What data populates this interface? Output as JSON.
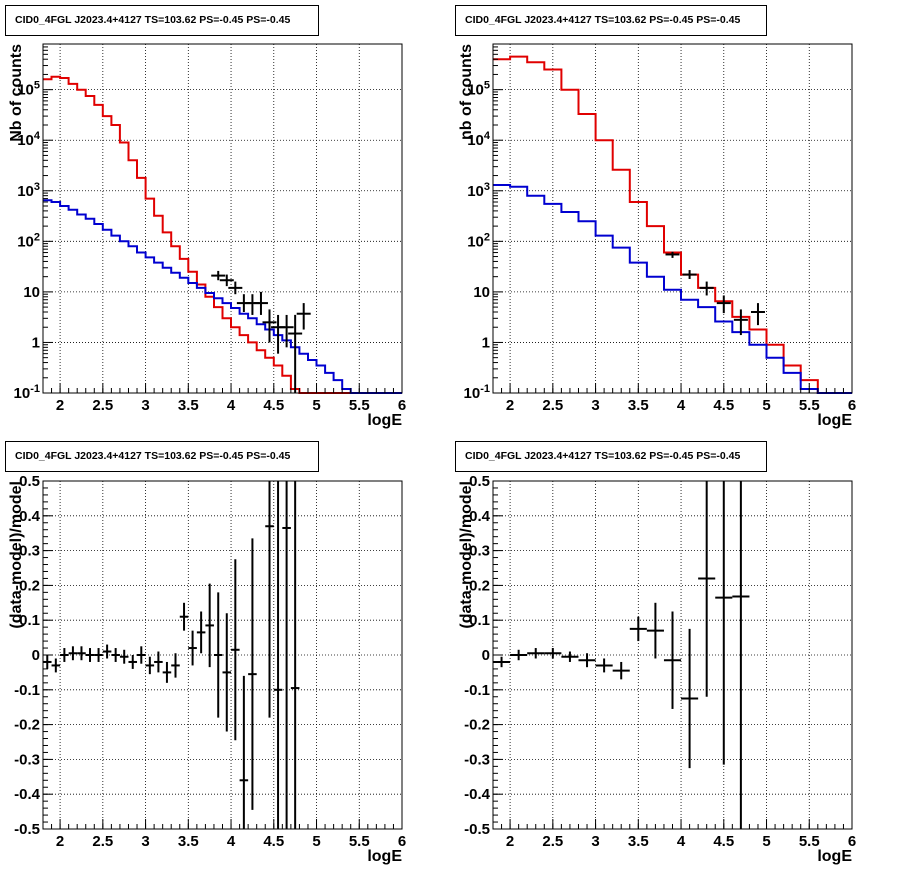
{
  "panels": [
    {
      "id": "p1",
      "title": "CID0_4FGL J2023.4+4127 TS=103.62 PS=-0.45 PS=-0.45",
      "chart_data": {
        "type": "line",
        "xlabel": "logE",
        "ylabel": "Nb of counts",
        "log_y": true,
        "xlim": [
          1.8,
          6.0
        ],
        "ylim": [
          0.1,
          800000
        ],
        "grid": true,
        "x_ticks": [
          2,
          2.5,
          3,
          3.5,
          4,
          4.5,
          5,
          5.5,
          6
        ],
        "x_tick_labels": [
          "2",
          "2.5",
          "3",
          "3.5",
          "4",
          "4.5",
          "5",
          "5.5",
          "6"
        ],
        "y_ticks": [
          0.1,
          1,
          10,
          100,
          1000,
          10000,
          100000
        ],
        "y_tick_labels": [
          "10^-1",
          "1",
          "10",
          "10^2",
          "10^3",
          "10^4",
          "10^5"
        ],
        "bin_edges": [
          1.8,
          1.9,
          2.0,
          2.1,
          2.2,
          2.3,
          2.4,
          2.5,
          2.6,
          2.7,
          2.8,
          2.9,
          3.0,
          3.1,
          3.2,
          3.3,
          3.4,
          3.5,
          3.6,
          3.7,
          3.8,
          3.9,
          4.0,
          4.1,
          4.2,
          4.3,
          4.4,
          4.5,
          4.6,
          4.7,
          4.8,
          4.9,
          5.0,
          5.1,
          5.2,
          5.3,
          5.4,
          5.5,
          5.6,
          5.7,
          5.8,
          5.9,
          6.0
        ],
        "series": [
          {
            "color": "#e00000",
            "step": true,
            "values": [
              160000,
              180000,
              170000,
              130000,
              100000,
              75000,
              50000,
              30000,
              20000,
              9000,
              4000,
              1800,
              700,
              320,
              150,
              80,
              45,
              25,
              14,
              8,
              5,
              3,
              2,
              1.4,
              1.0,
              0.7,
              0.5,
              0.35,
              0.22,
              0.12,
              0.1,
              0.1,
              0.1,
              0.1,
              0.1,
              0.1,
              0.1,
              0.1,
              0.1,
              0.1,
              0.1,
              0.1
            ]
          },
          {
            "color": "#0000d0",
            "step": true,
            "values": [
              650,
              600,
              500,
              420,
              340,
              280,
              220,
              170,
              130,
              100,
              80,
              60,
              48,
              38,
              30,
              24,
              19,
              15,
              12,
              9.5,
              7.5,
              6,
              4.8,
              3.7,
              3.0,
              2.3,
              1.8,
              1.4,
              1.1,
              0.8,
              0.6,
              0.45,
              0.35,
              0.25,
              0.18,
              0.12,
              0.1,
              0.1,
              0.1,
              0.1,
              0.1,
              0.1
            ]
          },
          {
            "color": "#000000",
            "step": false,
            "points": [
              {
                "x": 3.85,
                "y": 21,
                "ylo": 17,
                "yhi": 26
              },
              {
                "x": 3.95,
                "y": 17,
                "ylo": 13,
                "yhi": 22
              },
              {
                "x": 4.05,
                "y": 12,
                "ylo": 9,
                "yhi": 16
              },
              {
                "x": 4.15,
                "y": 6,
                "ylo": 4,
                "yhi": 9
              },
              {
                "x": 4.25,
                "y": 6,
                "ylo": 3.5,
                "yhi": 9
              },
              {
                "x": 4.35,
                "y": 6,
                "ylo": 3.5,
                "yhi": 10
              },
              {
                "x": 4.45,
                "y": 2.5,
                "ylo": 1,
                "yhi": 4.5
              },
              {
                "x": 4.55,
                "y": 2,
                "ylo": 0.6,
                "yhi": 3.5
              },
              {
                "x": 4.65,
                "y": 2,
                "ylo": 0.8,
                "yhi": 3.5
              },
              {
                "x": 4.75,
                "y": 1.5,
                "ylo": 0.1,
                "yhi": 3.5
              },
              {
                "x": 4.85,
                "y": 3.7,
                "ylo": 1.8,
                "yhi": 6
              }
            ]
          }
        ]
      }
    },
    {
      "id": "p2",
      "title": "CID0_4FGL J2023.4+4127 TS=103.62 PS=-0.45 PS=-0.45",
      "chart_data": {
        "type": "line",
        "xlabel": "logE",
        "ylabel": "nb of counts",
        "log_y": true,
        "xlim": [
          1.8,
          6.0
        ],
        "ylim": [
          0.1,
          800000
        ],
        "grid": true,
        "x_ticks": [
          2,
          2.5,
          3,
          3.5,
          4,
          4.5,
          5,
          5.5,
          6
        ],
        "x_tick_labels": [
          "2",
          "2.5",
          "3",
          "3.5",
          "4",
          "4.5",
          "5",
          "5.5",
          "6"
        ],
        "y_ticks": [
          0.1,
          1,
          10,
          100,
          1000,
          10000,
          100000
        ],
        "y_tick_labels": [
          "10^-1",
          "1",
          "10",
          "10^2",
          "10^3",
          "10^4",
          "10^5"
        ],
        "bin_edges": [
          1.8,
          2.0,
          2.2,
          2.4,
          2.6,
          2.8,
          3.0,
          3.2,
          3.4,
          3.6,
          3.8,
          4.0,
          4.2,
          4.4,
          4.6,
          4.8,
          5.0,
          5.2,
          5.4,
          5.6,
          5.8,
          6.0
        ],
        "series": [
          {
            "color": "#e00000",
            "step": true,
            "values": [
              400000,
              450000,
              350000,
              250000,
              100000,
              33000,
              10000,
              2600,
              600,
              200,
              60,
              22,
              12,
              6.5,
              3.2,
              1.8,
              0.9,
              0.35,
              0.18,
              0.1,
              0.1
            ]
          },
          {
            "color": "#0000d0",
            "step": true,
            "values": [
              1300,
              1200,
              800,
              550,
              380,
              250,
              130,
              75,
              38,
              20,
              11,
              7,
              5,
              2.6,
              1.6,
              0.9,
              0.5,
              0.25,
              0.12,
              0.1,
              0.1
            ]
          },
          {
            "color": "#000000",
            "step": false,
            "points": [
              {
                "x": 3.9,
                "y": 55,
                "ylo": 47,
                "yhi": 62
              },
              {
                "x": 4.1,
                "y": 22,
                "ylo": 18,
                "yhi": 27
              },
              {
                "x": 4.3,
                "y": 12,
                "ylo": 8.5,
                "yhi": 16
              },
              {
                "x": 4.5,
                "y": 6,
                "ylo": 3.8,
                "yhi": 8.5
              },
              {
                "x": 4.7,
                "y": 2.8,
                "ylo": 1.4,
                "yhi": 4.5
              },
              {
                "x": 4.9,
                "y": 4,
                "ylo": 2.2,
                "yhi": 6
              }
            ]
          }
        ]
      }
    },
    {
      "id": "p3",
      "title": "CID0_4FGL J2023.4+4127 TS=103.62 PS=-0.45 PS=-0.45",
      "chart_data": {
        "type": "scatter",
        "xlabel": "logE",
        "ylabel": "(data-model)/model",
        "log_y": false,
        "xlim": [
          1.8,
          6.0
        ],
        "ylim": [
          -0.5,
          0.5
        ],
        "grid": true,
        "x_ticks": [
          2,
          2.5,
          3,
          3.5,
          4,
          4.5,
          5,
          5.5,
          6
        ],
        "x_tick_labels": [
          "2",
          "2.5",
          "3",
          "3.5",
          "4",
          "4.5",
          "5",
          "5.5",
          "6"
        ],
        "y_ticks": [
          -0.5,
          -0.4,
          -0.3,
          -0.2,
          -0.1,
          0,
          0.1,
          0.2,
          0.3,
          0.4,
          0.5
        ],
        "y_tick_labels": [
          "-0.5",
          "-0.4",
          "-0.3",
          "-0.2",
          "-0.1",
          "0",
          "0.1",
          "0.2",
          "0.3",
          "0.4",
          "0.5"
        ],
        "bin_half_width": 0.05,
        "points": [
          {
            "x": 1.85,
            "y": -0.02,
            "err": 0.02
          },
          {
            "x": 1.95,
            "y": -0.03,
            "err": 0.02
          },
          {
            "x": 2.05,
            "y": 0.0,
            "err": 0.02
          },
          {
            "x": 2.15,
            "y": 0.005,
            "err": 0.02
          },
          {
            "x": 2.25,
            "y": 0.005,
            "err": 0.02
          },
          {
            "x": 2.35,
            "y": 0.0,
            "err": 0.02
          },
          {
            "x": 2.45,
            "y": 0.0,
            "err": 0.02
          },
          {
            "x": 2.55,
            "y": 0.01,
            "err": 0.02
          },
          {
            "x": 2.65,
            "y": 0.0,
            "err": 0.02
          },
          {
            "x": 2.75,
            "y": -0.005,
            "err": 0.02
          },
          {
            "x": 2.85,
            "y": -0.02,
            "err": 0.02
          },
          {
            "x": 2.95,
            "y": 0.0,
            "err": 0.025
          },
          {
            "x": 3.05,
            "y": -0.03,
            "err": 0.025
          },
          {
            "x": 3.15,
            "y": -0.02,
            "err": 0.03
          },
          {
            "x": 3.25,
            "y": -0.05,
            "err": 0.03
          },
          {
            "x": 3.35,
            "y": -0.03,
            "err": 0.035
          },
          {
            "x": 3.45,
            "y": 0.11,
            "err": 0.04
          },
          {
            "x": 3.55,
            "y": 0.02,
            "err": 0.05
          },
          {
            "x": 3.65,
            "y": 0.065,
            "err": 0.06
          },
          {
            "x": 3.75,
            "y": 0.085,
            "err": 0.12
          },
          {
            "x": 3.85,
            "y": 0.0,
            "err": 0.18
          },
          {
            "x": 3.95,
            "y": -0.05,
            "err": 0.17
          },
          {
            "x": 4.05,
            "y": 0.015,
            "err": 0.26
          },
          {
            "x": 4.15,
            "y": -0.36,
            "err": 0.3
          },
          {
            "x": 4.25,
            "y": -0.055,
            "err": 0.39
          },
          {
            "x": 4.45,
            "y": 0.37,
            "err": 0.55
          },
          {
            "x": 4.55,
            "y": -0.1,
            "err": 0.8
          },
          {
            "x": 4.65,
            "y": 0.365,
            "err": 0.9
          },
          {
            "x": 4.75,
            "y": -0.095,
            "err": 1.2
          }
        ]
      }
    },
    {
      "id": "p4",
      "title": "CID0_4FGL J2023.4+4127 TS=103.62 PS=-0.45 PS=-0.45",
      "chart_data": {
        "type": "scatter",
        "xlabel": "logE",
        "ylabel": "(data-model)/model",
        "log_y": false,
        "xlim": [
          1.8,
          6.0
        ],
        "ylim": [
          -0.5,
          0.5
        ],
        "grid": true,
        "x_ticks": [
          2,
          2.5,
          3,
          3.5,
          4,
          4.5,
          5,
          5.5,
          6
        ],
        "x_tick_labels": [
          "2",
          "2.5",
          "3",
          "3.5",
          "4",
          "4.5",
          "5",
          "5.5",
          "6"
        ],
        "y_ticks": [
          -0.5,
          -0.4,
          -0.3,
          -0.2,
          -0.1,
          0,
          0.1,
          0.2,
          0.3,
          0.4,
          0.5
        ],
        "y_tick_labels": [
          "-0.5",
          "-0.4",
          "-0.3",
          "-0.2",
          "-0.1",
          "0",
          "0.1",
          "0.2",
          "0.3",
          "0.4",
          "0.5"
        ],
        "bin_half_width": 0.1,
        "points": [
          {
            "x": 1.9,
            "y": -0.02,
            "err": 0.015
          },
          {
            "x": 2.1,
            "y": 0.0,
            "err": 0.015
          },
          {
            "x": 2.3,
            "y": 0.005,
            "err": 0.015
          },
          {
            "x": 2.5,
            "y": 0.005,
            "err": 0.015
          },
          {
            "x": 2.7,
            "y": -0.005,
            "err": 0.015
          },
          {
            "x": 2.9,
            "y": -0.015,
            "err": 0.02
          },
          {
            "x": 3.1,
            "y": -0.03,
            "err": 0.02
          },
          {
            "x": 3.3,
            "y": -0.045,
            "err": 0.025
          },
          {
            "x": 3.5,
            "y": 0.075,
            "err": 0.035
          },
          {
            "x": 3.7,
            "y": 0.07,
            "err": 0.08
          },
          {
            "x": 3.9,
            "y": -0.015,
            "err": 0.14
          },
          {
            "x": 4.1,
            "y": -0.125,
            "err": 0.2
          },
          {
            "x": 4.3,
            "y": 0.22,
            "err": 0.34
          },
          {
            "x": 4.5,
            "y": 0.165,
            "err": 0.48
          },
          {
            "x": 4.7,
            "y": 0.168,
            "err": 0.9
          }
        ]
      }
    }
  ]
}
